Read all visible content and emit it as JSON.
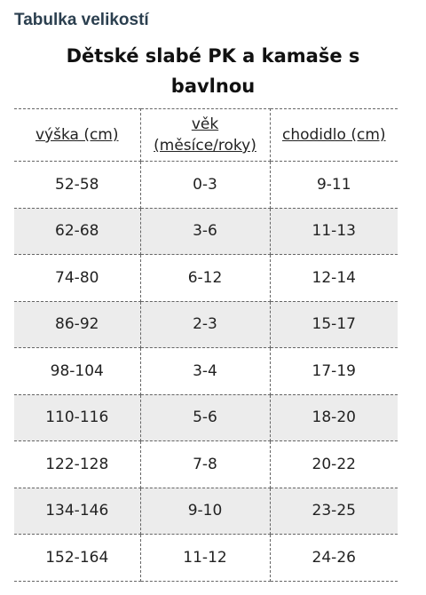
{
  "section_heading": "Tabulka velikostí",
  "table_title": "Dětské slabé PK a kamaše s bavlnou",
  "table": {
    "headers": [
      "výška (cm)",
      "věk (měsíce/roky)",
      "chodidlo (cm)"
    ],
    "rows": [
      [
        "52-58",
        "0-3",
        "9-11"
      ],
      [
        "62-68",
        "3-6",
        "11-13"
      ],
      [
        "74-80",
        "6-12",
        "12-14"
      ],
      [
        "86-92",
        "2-3",
        "15-17"
      ],
      [
        "98-104",
        "3-4",
        "17-19"
      ],
      [
        "110-116",
        "5-6",
        "18-20"
      ],
      [
        "122-128",
        "7-8",
        "20-22"
      ],
      [
        "134-146",
        "9-10",
        "23-25"
      ],
      [
        "152-164",
        "11-12",
        "24-26"
      ]
    ]
  },
  "colors": {
    "heading": "#2b3f4f",
    "shaded_row": "#ececec",
    "border": "#666666"
  }
}
